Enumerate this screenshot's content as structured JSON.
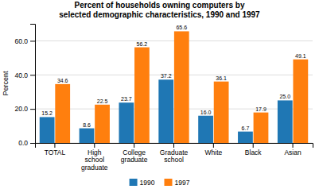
{
  "chart_data": {
    "type": "bar",
    "title": "Percent of households owning computers by\nselected demographic characteristics, 1990 and 1997",
    "categories": [
      "TOTAL",
      "High\nschool\ngraduate",
      "College\ngraduate",
      "Graduate\nschool",
      "White",
      "Black",
      "Asian"
    ],
    "series": [
      {
        "name": "1990",
        "values": [
          15.2,
          8.6,
          23.7,
          37.2,
          16.0,
          6.7,
          25.0
        ],
        "value_labels": [
          "15.2",
          "8.6",
          "23.7",
          "37.2",
          "16.0",
          "6.7",
          "25.0"
        ]
      },
      {
        "name": "1997",
        "values": [
          34.6,
          22.5,
          56.2,
          65.6,
          36.1,
          17.9,
          49.1
        ]
      }
    ],
    "ylabel": "Percent",
    "ylim": [
      0,
      70
    ],
    "yticks": [
      {
        "value": 0.0,
        "label": "0.0"
      },
      {
        "value": 20.0,
        "label": "20.0"
      },
      {
        "value": 40.0,
        "label": "40.0"
      },
      {
        "value": 60.0,
        "label": "60.0"
      }
    ],
    "grid": true,
    "legend": "bottom",
    "data_labels": true
  }
}
